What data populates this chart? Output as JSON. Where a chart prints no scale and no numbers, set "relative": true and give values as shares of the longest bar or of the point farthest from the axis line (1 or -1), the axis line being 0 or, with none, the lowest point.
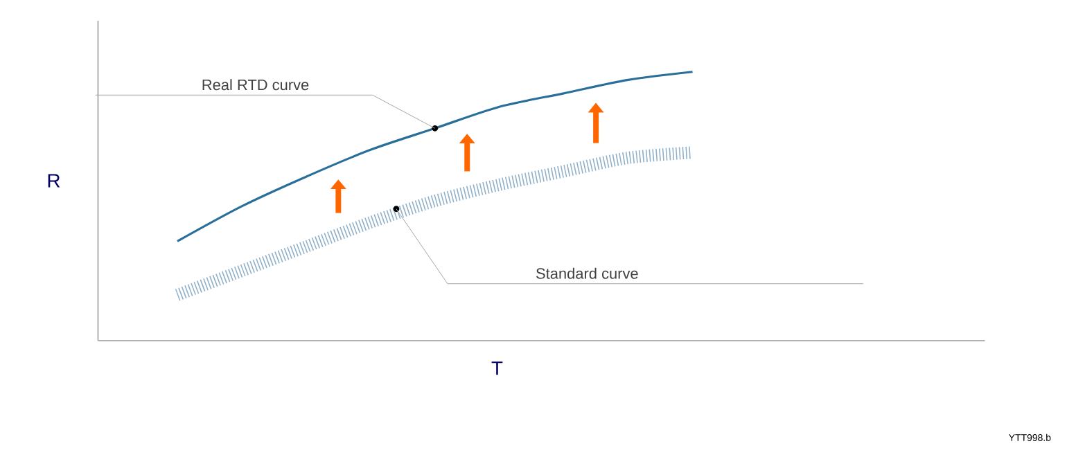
{
  "chart_data": {
    "type": "line",
    "relative": true,
    "xlabel": "T",
    "ylabel": "R",
    "categories": [
      null,
      null,
      null,
      null,
      null,
      null,
      null,
      null,
      null
    ],
    "series": [
      {
        "name": "Real RTD curve",
        "color": "#2a6f9a",
        "line_style": "solid",
        "values": [
          0.37,
          0.5,
          0.61,
          0.71,
          0.79,
          0.87,
          0.92,
          0.97,
          1
        ]
      },
      {
        "name": "Standard curve",
        "color": "#8fb0c8",
        "line_style": "dotted",
        "values": [
          0.17,
          0.26,
          0.35,
          0.44,
          0.52,
          0.58,
          0.63,
          0.68,
          0.7
        ]
      }
    ],
    "annotations": [
      "YTT998.b"
    ]
  }
}
